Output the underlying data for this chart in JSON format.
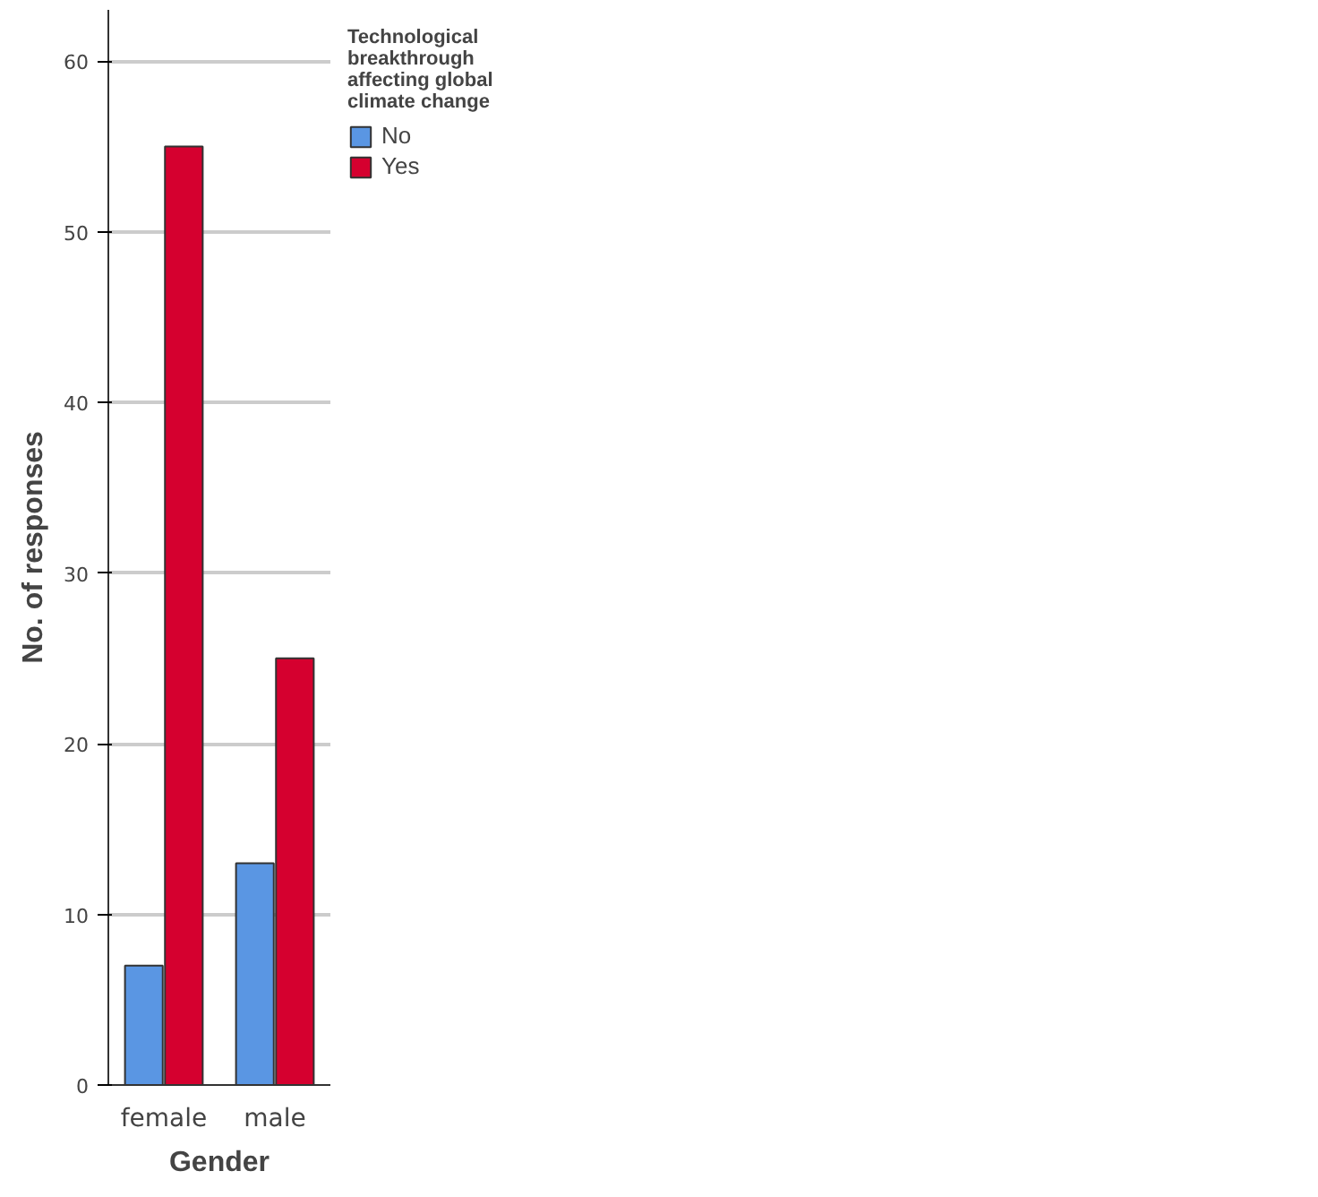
{
  "chart_data": {
    "type": "bar",
    "xlabel": "Gender",
    "ylabel": "No. of responses",
    "legend_title": "Technological breakthrough affecting global climate change",
    "categories": [
      "female",
      "male"
    ],
    "series": [
      {
        "name": "No",
        "color": "#5a96e3",
        "values": [
          7,
          13
        ]
      },
      {
        "name": "Yes",
        "color": "#d5002f",
        "values": [
          55,
          25
        ]
      }
    ],
    "ylim": [
      0,
      63
    ],
    "yticks": [
      0,
      10,
      20,
      30,
      40,
      50,
      60
    ],
    "grid": "y",
    "legend": "top right"
  }
}
